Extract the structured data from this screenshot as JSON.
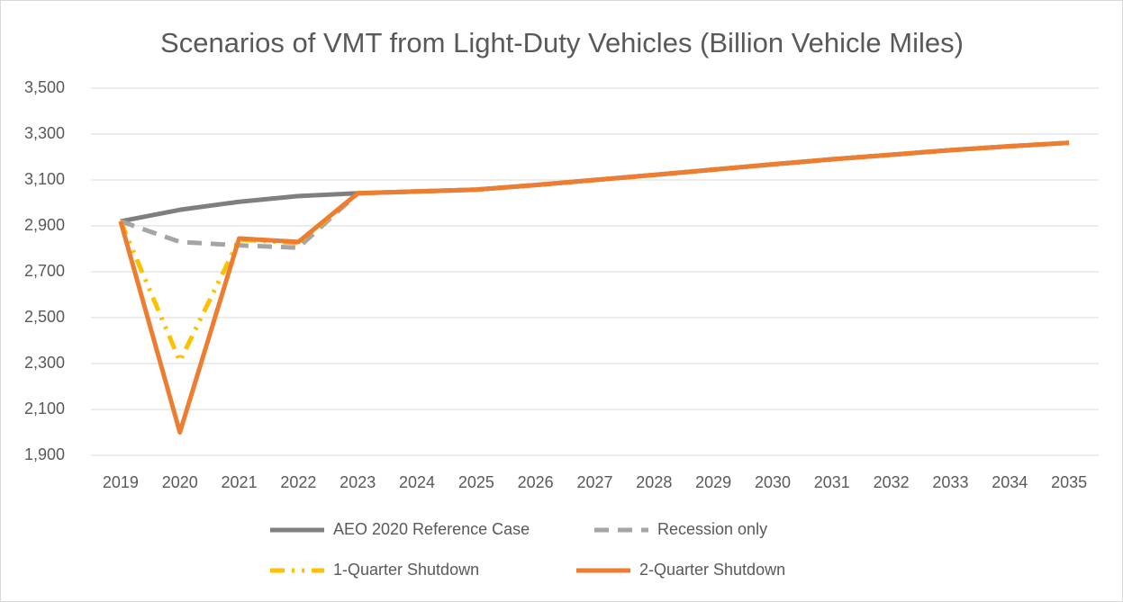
{
  "chart_data": {
    "type": "line",
    "title": "Scenarios of VMT from Light-Duty Vehicles (Billion Vehicle Miles)",
    "categories": [
      "2019",
      "2020",
      "2021",
      "2022",
      "2023",
      "2024",
      "2025",
      "2026",
      "2027",
      "2028",
      "2029",
      "2030",
      "2031",
      "2032",
      "2033",
      "2034",
      "2035"
    ],
    "series": [
      {
        "name": "AEO 2020 Reference Case",
        "color": "#7f7f7f",
        "dash": "solid",
        "values": [
          2920,
          2970,
          3005,
          3030,
          3042,
          3050,
          3058,
          3078,
          3100,
          3122,
          3145,
          3168,
          3190,
          3210,
          3230,
          3247,
          3262
        ]
      },
      {
        "name": "Recession only",
        "color": "#a5a5a5",
        "dash": "dash",
        "values": [
          2920,
          2830,
          2815,
          2805,
          3042,
          3050,
          3058,
          3078,
          3100,
          3122,
          3145,
          3168,
          3190,
          3210,
          3230,
          3247,
          3262
        ]
      },
      {
        "name": "1-Quarter Shutdown",
        "color": "#ffc000",
        "dash": "dash-dot",
        "values": [
          2920,
          2310,
          2840,
          2825,
          3042,
          3050,
          3058,
          3078,
          3100,
          3122,
          3145,
          3168,
          3190,
          3210,
          3230,
          3247,
          3262
        ]
      },
      {
        "name": "2-Quarter Shutdown",
        "color": "#ed7d31",
        "dash": "solid",
        "values": [
          2920,
          2000,
          2845,
          2830,
          3042,
          3050,
          3058,
          3078,
          3100,
          3122,
          3145,
          3168,
          3190,
          3210,
          3230,
          3247,
          3262
        ]
      }
    ],
    "ylim": [
      1900,
      3500
    ],
    "yticks": [
      {
        "value": 1900,
        "label": "1,900"
      },
      {
        "value": 2100,
        "label": "2,100"
      },
      {
        "value": 2300,
        "label": "2,300"
      },
      {
        "value": 2500,
        "label": "2,500"
      },
      {
        "value": 2700,
        "label": "2,700"
      },
      {
        "value": 2900,
        "label": "2,900"
      },
      {
        "value": 3100,
        "label": "3,100"
      },
      {
        "value": 3300,
        "label": "3,300"
      },
      {
        "value": 3500,
        "label": "3,500"
      }
    ],
    "grid": true,
    "legend": "bottom"
  }
}
